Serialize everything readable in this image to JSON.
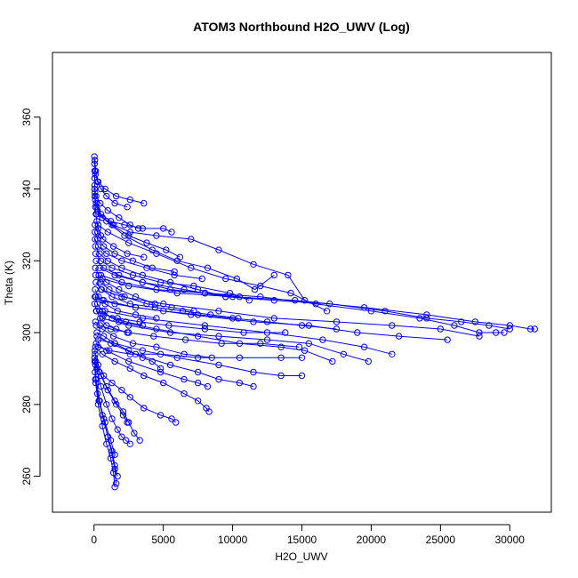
{
  "chart_data": {
    "type": "scatter",
    "title": "ATOM3 Northbound H2O_UWV (Log)",
    "xlabel": "H2O_UWV",
    "ylabel": "Theta (K)",
    "xlim": [
      -3000,
      33000
    ],
    "ylim": [
      250,
      378
    ],
    "x_ticks": [
      0,
      5000,
      10000,
      15000,
      20000,
      25000,
      30000
    ],
    "y_ticks": [
      260,
      280,
      300,
      320,
      340,
      360
    ],
    "grid": false,
    "legend": "none",
    "marker": "open-circle",
    "connect_points": true,
    "color": "#0000ff",
    "series": [
      {
        "x": [
          30,
          35,
          40,
          45,
          50,
          60,
          80,
          100,
          140,
          200,
          300,
          500
        ],
        "y": [
          349,
          347,
          345,
          343,
          341,
          339,
          337,
          335,
          333,
          331,
          329,
          327
        ]
      },
      {
        "x": [
          60,
          120,
          250,
          500,
          900,
          1500,
          2400
        ],
        "y": [
          348,
          345,
          342,
          340,
          338,
          336,
          335
        ]
      },
      {
        "x": [
          100,
          300,
          800,
          1600,
          2600,
          3600
        ],
        "y": [
          344,
          342,
          340,
          338,
          337,
          336
        ]
      },
      {
        "x": [
          200,
          600,
          1400,
          2600,
          4500,
          7000,
          9000,
          11500,
          14000,
          15200
        ],
        "y": [
          333,
          332,
          330,
          328,
          327,
          326,
          323,
          319,
          316,
          309
        ]
      },
      {
        "x": [
          150,
          500,
          1200,
          2200,
          3500,
          5000,
          5600
        ],
        "y": [
          336,
          333,
          331,
          330,
          329,
          329,
          328
        ]
      },
      {
        "x": [
          300,
          1000,
          2500,
          4500,
          7000,
          9500,
          12000,
          14200,
          16800
        ],
        "y": [
          330,
          328,
          325,
          322,
          318,
          315,
          313,
          311,
          306
        ]
      },
      {
        "x": [
          250,
          900,
          2200,
          4200,
          6000,
          8200,
          10300,
          11600,
          13000
        ],
        "y": [
          334,
          331,
          327,
          323,
          320,
          318,
          315,
          312,
          316
        ]
      },
      {
        "x": [
          400,
          1500,
          3500,
          6500,
          9500,
          13000,
          17000,
          21000,
          24000,
          26500,
          28500,
          30000
        ],
        "y": [
          318,
          316,
          314,
          312,
          310,
          309,
          308,
          306,
          304,
          303,
          302,
          301
        ]
      },
      {
        "x": [
          500,
          2000,
          4500,
          8000,
          12000,
          16000,
          20000,
          23500,
          26000,
          27800,
          29000,
          29600
        ],
        "y": [
          316,
          314,
          312,
          311,
          310,
          308,
          306,
          304,
          302,
          300,
          300,
          300
        ]
      },
      {
        "x": [
          600,
          2500,
          6000,
          10000,
          14500,
          19500,
          24000,
          27500,
          30000,
          31500,
          31800
        ],
        "y": [
          315,
          313,
          311,
          310,
          309,
          307,
          305,
          303,
          302,
          301,
          301
        ]
      },
      {
        "x": [
          500,
          2000,
          5000,
          9000,
          13000,
          17500,
          21500,
          25000,
          27800
        ],
        "y": [
          312,
          310,
          308,
          306,
          304,
          303,
          302,
          301,
          299
        ]
      },
      {
        "x": [
          700,
          3000,
          7000,
          11500,
          15500,
          19000,
          22000,
          25500
        ],
        "y": [
          309,
          307,
          305,
          303,
          302,
          300,
          299,
          298
        ]
      },
      {
        "x": [
          800,
          3500,
          8000,
          12500,
          16500,
          19500,
          21500
        ],
        "y": [
          306,
          304,
          302,
          300,
          298,
          296,
          294
        ]
      },
      {
        "x": [
          600,
          2500,
          5500,
          9000,
          12500,
          15500,
          18000,
          19800
        ],
        "y": [
          304,
          302,
          300,
          299,
          298,
          297,
          294,
          292
        ]
      },
      {
        "x": [
          400,
          1800,
          4500,
          7500,
          10500,
          13500,
          15200,
          17200
        ],
        "y": [
          306,
          303,
          301,
          299,
          297,
          296,
          295,
          292
        ]
      },
      {
        "x": [
          300,
          1500,
          3500,
          6000,
          9000,
          11500,
          13500,
          15000
        ],
        "y": [
          298,
          297,
          295,
          293,
          291,
          289,
          288,
          288
        ]
      },
      {
        "x": [
          200,
          1200,
          3000,
          5500,
          7500,
          9000,
          10500,
          11500
        ],
        "y": [
          299,
          297,
          294,
          291,
          289,
          287,
          286,
          285
        ]
      },
      {
        "x": [
          150,
          900,
          2500,
          4800,
          6500,
          7500,
          8200
        ],
        "y": [
          297,
          295,
          292,
          289,
          287,
          286,
          285
        ]
      },
      {
        "x": [
          100,
          600,
          1500,
          2600,
          3600,
          5000,
          6500,
          7500,
          8100,
          8300
        ],
        "y": [
          296,
          294,
          292,
          290,
          288,
          286,
          283,
          281,
          279,
          278
        ]
      },
      {
        "x": [
          100,
          400,
          900,
          1500,
          2100,
          2500,
          2900,
          3300
        ],
        "y": [
          291,
          289,
          285,
          281,
          278,
          275,
          272,
          270
        ]
      },
      {
        "x": [
          80,
          300,
          700,
          1300,
          2000,
          2600,
          3600,
          4800,
          5600,
          5900
        ],
        "y": [
          294,
          291,
          288,
          286,
          284,
          282,
          279,
          277,
          276,
          275
        ]
      },
      {
        "x": [
          120,
          500,
          1000,
          1600,
          2100,
          2400
        ],
        "y": [
          292,
          288,
          284,
          280,
          277,
          275
        ]
      },
      {
        "x": [
          60,
          200,
          500,
          900,
          1300,
          1700,
          2000,
          2300,
          2600
        ],
        "y": [
          295,
          290,
          285,
          280,
          276,
          273,
          271,
          270,
          269
        ]
      },
      {
        "x": [
          50,
          150,
          400,
          700,
          1000,
          1300,
          1500,
          1600
        ],
        "y": [
          293,
          287,
          281,
          276,
          271,
          266,
          262,
          258
        ]
      },
      {
        "x": [
          40,
          120,
          300,
          600,
          900,
          1200,
          1400,
          1500
        ],
        "y": [
          292,
          286,
          280,
          274,
          269,
          265,
          261,
          257
        ]
      },
      {
        "x": [
          70,
          250,
          600,
          1000,
          1300,
          1500,
          1700
        ],
        "y": [
          289,
          283,
          277,
          271,
          267,
          263,
          260
        ]
      },
      {
        "x": [
          90,
          350,
          800,
          1200,
          1500
        ],
        "y": [
          287,
          281,
          275,
          270,
          266
        ]
      },
      {
        "x": [
          200,
          700,
          1500,
          2500,
          3500,
          4200,
          4800
        ],
        "y": [
          300,
          299,
          297,
          295,
          293,
          292,
          290
        ]
      },
      {
        "x": [
          150,
          600,
          1400,
          2800,
          4500,
          6500,
          8500
        ],
        "y": [
          302,
          301,
          299,
          297,
          296,
          294,
          293
        ]
      },
      {
        "x": [
          100,
          400,
          1000,
          2000,
          3500,
          5500,
          7500,
          9500
        ],
        "y": [
          324,
          322,
          320,
          318,
          316,
          314,
          312,
          310
        ]
      },
      {
        "x": [
          120,
          500,
          1300,
          2800,
          4800,
          7200,
          9800,
          11200
        ],
        "y": [
          322,
          320,
          318,
          316,
          314,
          313,
          311,
          309
        ]
      },
      {
        "x": [
          150,
          700,
          1800,
          3500,
          5500,
          8000,
          10500
        ],
        "y": [
          320,
          318,
          316,
          314,
          312,
          311,
          310
        ]
      },
      {
        "x": [
          80,
          300,
          900,
          2000,
          3800,
          5800,
          7800
        ],
        "y": [
          326,
          324,
          322,
          320,
          318,
          316,
          315
        ]
      },
      {
        "x": [
          60,
          250,
          700,
          1500,
          2800,
          4200,
          5800
        ],
        "y": [
          328,
          326,
          324,
          322,
          320,
          318,
          317
        ]
      },
      {
        "x": [
          50,
          200,
          600,
          1300,
          2500,
          3800,
          5200,
          6200
        ],
        "y": [
          338,
          335,
          332,
          330,
          327,
          325,
          323,
          321
        ]
      },
      {
        "x": [
          40,
          150,
          450,
          1000,
          1800,
          2600,
          3200
        ],
        "y": [
          340,
          338,
          336,
          334,
          332,
          330,
          329
        ]
      },
      {
        "x": [
          70,
          250,
          650,
          1400,
          2400,
          3600
        ],
        "y": [
          330,
          328,
          326,
          324,
          322,
          321
        ]
      },
      {
        "x": [
          90,
          350,
          900,
          1800,
          3000,
          4400
        ],
        "y": [
          318,
          316,
          314,
          312,
          310,
          308
        ]
      },
      {
        "x": [
          110,
          450,
          1100,
          2200,
          3800,
          5600,
          7200
        ],
        "y": [
          316,
          314,
          312,
          310,
          308,
          307,
          306
        ]
      },
      {
        "x": [
          130,
          550,
          1300,
          2600,
          4400,
          6400,
          8400,
          10400
        ],
        "y": [
          314,
          312,
          310,
          308,
          307,
          306,
          305,
          304
        ]
      },
      {
        "x": [
          80,
          320,
          800,
          1700,
          3000,
          4500
        ],
        "y": [
          312,
          310,
          308,
          306,
          305,
          304
        ]
      },
      {
        "x": [
          60,
          240,
          600,
          1300,
          2300,
          3500
        ],
        "y": [
          310,
          308,
          306,
          304,
          303,
          302
        ]
      },
      {
        "x": [
          50,
          180,
          450,
          900,
          1600,
          2400
        ],
        "y": [
          308,
          306,
          304,
          302,
          301,
          300
        ]
      },
      {
        "x": [
          140,
          600,
          1500,
          3000,
          5000,
          7500,
          10000,
          12500,
          15000,
          17500
        ],
        "y": [
          310,
          309,
          308,
          307,
          306,
          305,
          304,
          303,
          302,
          301
        ]
      },
      {
        "x": [
          160,
          700,
          1700,
          3300,
          5400,
          8000,
          10800,
          13800
        ],
        "y": [
          306,
          305,
          304,
          303,
          302,
          301,
          300,
          300
        ]
      },
      {
        "x": [
          100,
          450,
          1200,
          2500,
          4300,
          6600,
          9200,
          12000,
          14800
        ],
        "y": [
          303,
          302,
          301,
          300,
          299,
          298,
          297,
          297,
          296
        ]
      },
      {
        "x": [
          300,
          1100,
          2600,
          4800,
          7500,
          10500,
          13500,
          15000
        ],
        "y": [
          296,
          295,
          294,
          294,
          293,
          293,
          293,
          293
        ]
      }
    ]
  }
}
